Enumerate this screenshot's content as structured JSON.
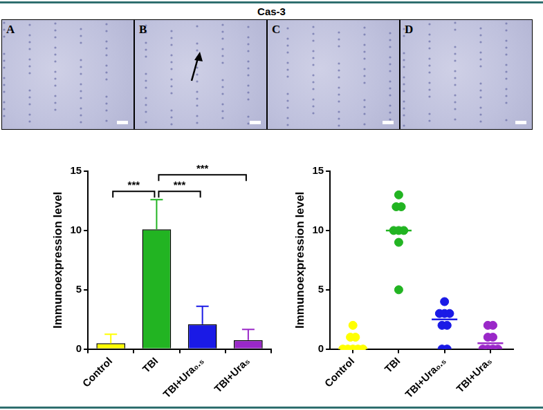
{
  "title": "Cas-3",
  "panels": [
    "A",
    "B",
    "C",
    "D"
  ],
  "chart_data": [
    {
      "type": "bar",
      "categories": [
        "Control",
        "TBI",
        "TBI+Ura₀.₅",
        "TBI+Ura₅"
      ],
      "values": [
        0.5,
        10.1,
        2.1,
        0.75
      ],
      "errors": [
        0.75,
        2.5,
        1.5,
        0.9
      ],
      "colors": [
        "#ffff00",
        "#22b422",
        "#1a1ae6",
        "#9a28c8"
      ],
      "ylabel": "Immunoexpression level",
      "ylim": [
        0,
        15
      ],
      "yticks": [
        0,
        5,
        10,
        15
      ],
      "grid": false,
      "annotations": [
        {
          "from": "Control",
          "to": "TBI",
          "text": "***"
        },
        {
          "from": "TBI",
          "to": "TBI+Ura₀.₅",
          "text": "***"
        },
        {
          "from": "TBI",
          "to": "TBI+Ura₅",
          "text": "***"
        }
      ]
    },
    {
      "type": "strip",
      "categories": [
        "Control",
        "TBI",
        "TBI+Ura₀.₅",
        "TBI+Ura₅"
      ],
      "values": [
        [
          0,
          0,
          0,
          0,
          0,
          1,
          1,
          2
        ],
        [
          13,
          12,
          12,
          10,
          10,
          10,
          9,
          5
        ],
        [
          4,
          3,
          3,
          3,
          2,
          2,
          0,
          0
        ],
        [
          2,
          2,
          1,
          1,
          0,
          0,
          0,
          0
        ]
      ],
      "medians": [
        0,
        10,
        2.5,
        0.5
      ],
      "colors": [
        "#ffff00",
        "#22b422",
        "#1a1ae6",
        "#9a28c8"
      ],
      "ylabel": "Immunoexpression level",
      "ylim": [
        0,
        15
      ],
      "yticks": [
        0,
        5,
        10,
        15
      ],
      "grid": false
    }
  ]
}
